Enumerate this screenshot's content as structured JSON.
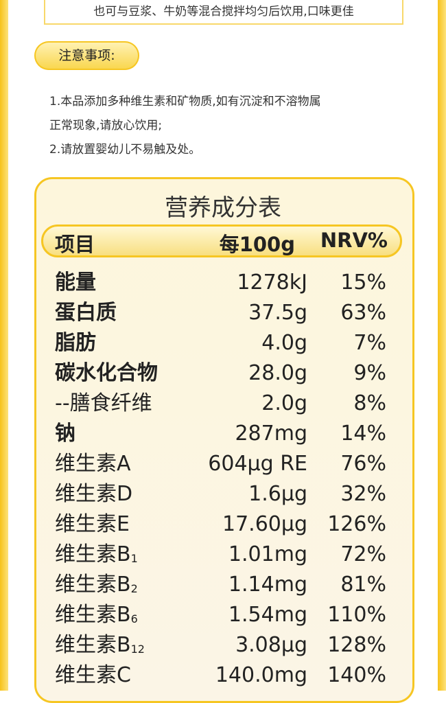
{
  "intro": {
    "text": "也可与豆浆、牛奶等混合搅拌均匀后饮用,口味更佳"
  },
  "notice": {
    "title": "注意事项:",
    "lines": [
      "1.本品添加多种维生素和矿物质,如有沉淀和不溶物属",
      "正常现象,请放心饮用;",
      "2.请放置婴幼儿不易触及处。"
    ]
  },
  "table": {
    "title": "营养成分表",
    "header": [
      "项目",
      "每100g",
      "NRV%"
    ],
    "rows": [
      {
        "name": "能量",
        "amount": "1278kJ",
        "nrv": "15%",
        "bold": true
      },
      {
        "name": "蛋白质",
        "amount": "37.5g",
        "nrv": "63%",
        "bold": true
      },
      {
        "name": "脂肪",
        "amount": "4.0g",
        "nrv": "7%",
        "bold": true
      },
      {
        "name": "碳水化合物",
        "amount": "28.0g",
        "nrv": "9%",
        "bold": true
      },
      {
        "name": "--膳食纤维",
        "amount": "2.0g",
        "nrv": "8%",
        "bold": false
      },
      {
        "name": "钠",
        "amount": "287mg",
        "nrv": "14%",
        "bold": true
      },
      {
        "name": "维生素A",
        "amount": "604μg RE",
        "nrv": "76%",
        "bold": false
      },
      {
        "name": "维生素D",
        "amount": "1.6μg",
        "nrv": "32%",
        "bold": false
      },
      {
        "name": "维生素E",
        "amount": "17.60μg",
        "nrv": "126%",
        "bold": false
      },
      {
        "name": "维生素B",
        "sub": "1",
        "amount": "1.01mg",
        "nrv": "72%",
        "bold": false
      },
      {
        "name": "维生素B",
        "sub": "2",
        "amount": "1.14mg",
        "nrv": "81%",
        "bold": false
      },
      {
        "name": "维生素B",
        "sub": "6",
        "amount": "1.54mg",
        "nrv": "110%",
        "bold": false
      },
      {
        "name": "维生素B",
        "sub": "12",
        "amount": "3.08μg",
        "nrv": "128%",
        "bold": false
      },
      {
        "name": "维生素C",
        "amount": "140.0mg",
        "nrv": "140%",
        "bold": false
      }
    ]
  }
}
